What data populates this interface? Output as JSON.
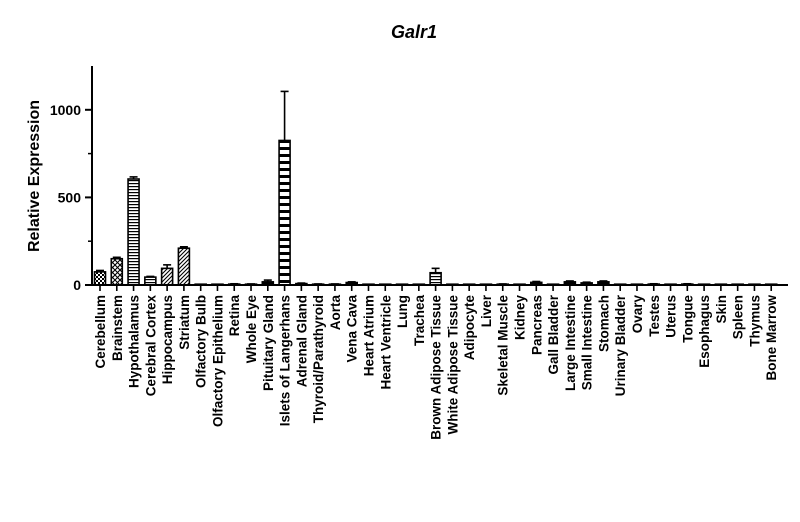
{
  "chart_data": {
    "type": "bar",
    "title": "Galr1",
    "xlabel": "",
    "ylabel": "Relative Expression",
    "ylim": [
      0,
      1250
    ],
    "yticks": [
      0,
      500,
      1000
    ],
    "grid": false,
    "legend": "none",
    "categories": [
      "Cerebellum",
      "Brainstem",
      "Hypothalamus",
      "Cerebral Cortex",
      "Hippocampus",
      "Striatum",
      "Olfactory Bulb",
      "Olfactory Epithelium",
      "Retina",
      "Whole Eye",
      "Pituitary Gland",
      "Islets of Langerhans",
      "Adrenal Gland",
      "Thyroid/Parathyroid",
      "Aorta",
      "Vena Cava",
      "Heart Atrium",
      "Heart Ventricle",
      "Lung",
      "Trachea",
      "Brown Adipose Tissue",
      "White Adipose Tissue",
      "Adipocyte",
      "Liver",
      "Skeletal Muscle",
      "Kidney",
      "Pancreas",
      "Gall Bladder",
      "Large Intestine",
      "Small Intestine",
      "Stomach",
      "Urinary Bladder",
      "Ovary",
      "Testes",
      "Uterus",
      "Tongue",
      "Esophagus",
      "Skin",
      "Spleen",
      "Thymus",
      "Bone Marrow"
    ],
    "values": [
      75,
      150,
      605,
      45,
      95,
      210,
      2,
      2,
      5,
      4,
      18,
      825,
      8,
      4,
      4,
      14,
      3,
      3,
      3,
      3,
      70,
      3,
      3,
      3,
      4,
      3,
      15,
      3,
      18,
      12,
      18,
      3,
      3,
      5,
      3,
      5,
      3,
      3,
      3,
      3,
      3
    ],
    "errors": [
      8,
      8,
      12,
      4,
      20,
      8,
      1,
      1,
      2,
      2,
      10,
      280,
      3,
      2,
      2,
      4,
      1,
      1,
      1,
      1,
      25,
      1,
      1,
      1,
      2,
      1,
      5,
      1,
      5,
      4,
      5,
      1,
      1,
      2,
      1,
      2,
      1,
      1,
      1,
      1,
      1
    ],
    "patterns": [
      "check",
      "diag-cross",
      "hstripe",
      "hstripe",
      "diag",
      "diag",
      "solid",
      "solid",
      "solid",
      "solid",
      "solid",
      "hstripe-bold",
      "solid",
      "solid",
      "solid",
      "solid",
      "solid",
      "solid",
      "solid",
      "solid",
      "hstripe",
      "solid",
      "solid",
      "solid",
      "solid",
      "solid",
      "solid",
      "solid",
      "solid",
      "solid",
      "solid",
      "solid",
      "solid",
      "solid",
      "solid",
      "solid",
      "solid",
      "solid",
      "solid",
      "solid",
      "solid"
    ],
    "colors": {
      "bar": "#000000",
      "fill": "#ffffff",
      "axis": "#000000"
    }
  }
}
